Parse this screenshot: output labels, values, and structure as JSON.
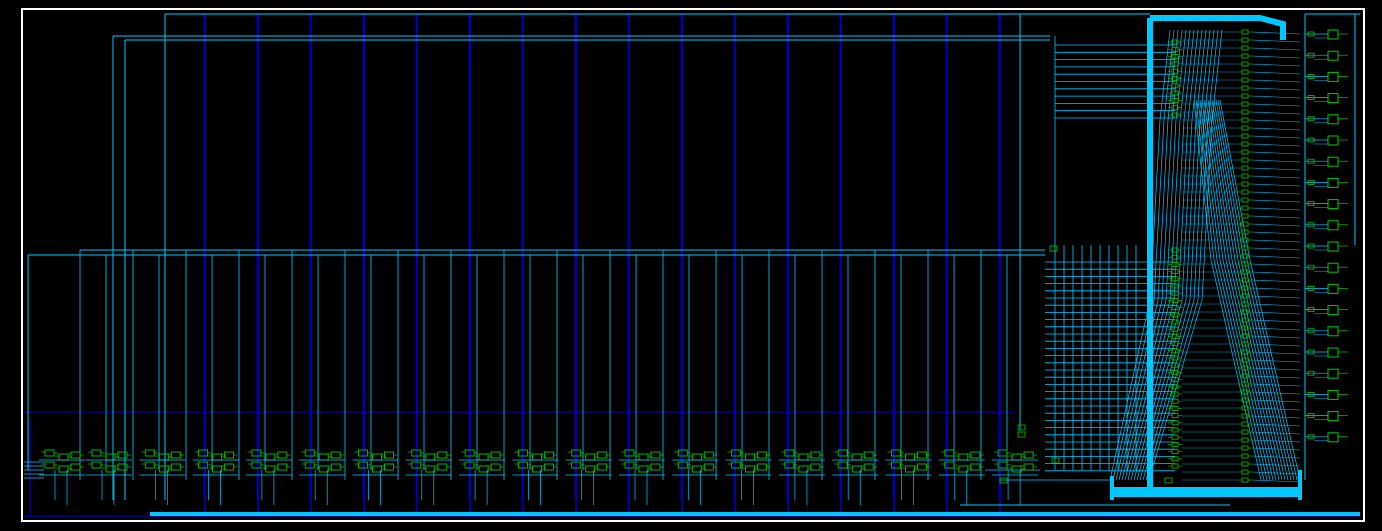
{
  "diagram": {
    "kind": "schematic-netlist-view",
    "colors": {
      "background": "#000000",
      "frame": "#ffffff",
      "outer_border": "#1a1a1a",
      "net": "#00c8ff",
      "bus": "#0000c8",
      "cell": "#00c800",
      "pin": "#00c800"
    },
    "gate_row_cells": 18,
    "right_mux_columns": 2,
    "right_output_cells": 20
  }
}
